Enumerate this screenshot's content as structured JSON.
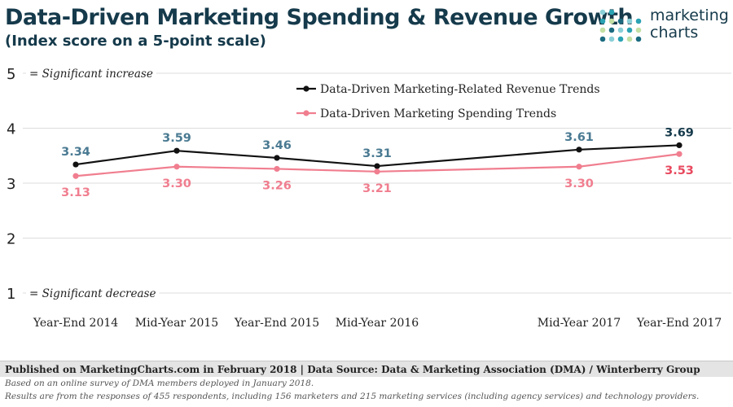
{
  "header": {
    "title": "Data-Driven Marketing Spending & Revenue Growth",
    "subtitle": "(Index score on a 5-point scale)"
  },
  "logo": {
    "line1": "marketing",
    "line2": "charts"
  },
  "chart_data": {
    "type": "line",
    "categories": [
      "Year-End 2014",
      "Mid-Year 2015",
      "Year-End 2015",
      "Mid-Year 2016",
      "Mid-Year 2017",
      "Year-End 2017"
    ],
    "ylim": [
      1,
      5
    ],
    "yticks": [
      1,
      2,
      3,
      4,
      5
    ],
    "grid": true,
    "legend_position": "top-right",
    "annotations": [
      {
        "y": 5,
        "text": "= Significant increase"
      },
      {
        "y": 1,
        "text": "= Significant decrease"
      }
    ],
    "series": [
      {
        "name": "Data-Driven Marketing-Related Revenue Trends",
        "color": "#111111",
        "label_color": "#4a7a92",
        "last_label_color": "#153a4b",
        "values": [
          3.34,
          3.59,
          3.46,
          3.31,
          3.61,
          3.69
        ]
      },
      {
        "name": "Data-Driven Marketing Spending Trends",
        "color": "#f07e8f",
        "label_color": "#f07e8f",
        "last_label_color": "#e8495f",
        "values": [
          3.13,
          3.3,
          3.26,
          3.21,
          3.3,
          3.53
        ]
      }
    ]
  },
  "footer": {
    "source": "Published on MarketingCharts.com in February 2018 | Data Source: Data & Marketing Association (DMA) / Winterberry Group",
    "note1": "Based on an online survey of DMA members deployed in January 2018.",
    "note2": "Results are from the responses of 455 respondents, including 156 marketers and 215 marketing services (including agency services) and technology providers."
  },
  "colors": {
    "title": "#153a4b",
    "dot_palette": [
      "#8ad0d8",
      "#2aa3b3",
      "#c3e0a5",
      "#1b6b80"
    ]
  }
}
